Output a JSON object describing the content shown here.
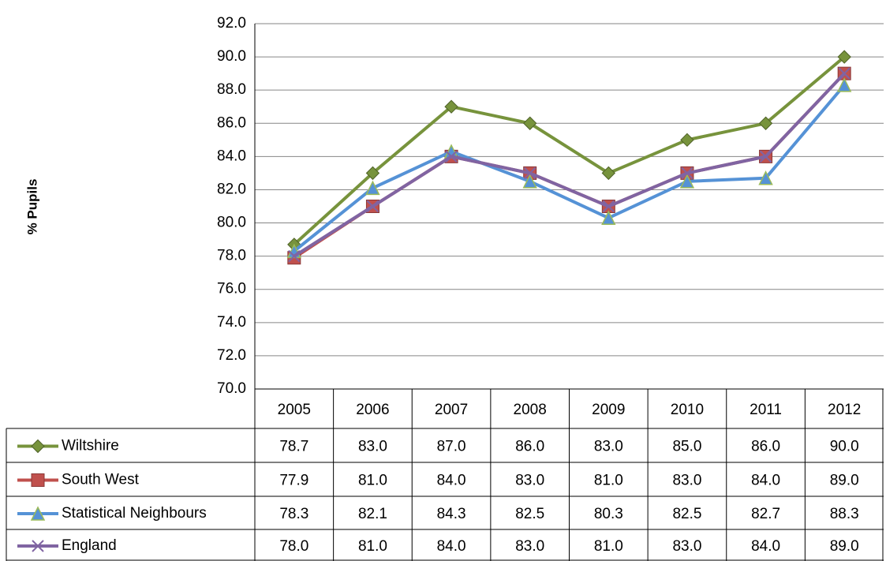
{
  "chart_data": {
    "type": "line",
    "y_label": "% Pupils",
    "categories": [
      "2005",
      "2006",
      "2007",
      "2008",
      "2009",
      "2010",
      "2011",
      "2012"
    ],
    "series": [
      {
        "name": "Wiltshire",
        "color": "#77933c",
        "marker": "diamond",
        "values": [
          78.7,
          83,
          87,
          86,
          83,
          85,
          86,
          90
        ],
        "value_labels": [
          "78.7",
          "83.0",
          "87.0",
          "86.0",
          "83.0",
          "85.0",
          "86.0",
          "90.0"
        ]
      },
      {
        "name": "South West",
        "color": "#c0504d",
        "marker": "square",
        "values": [
          77.9,
          81,
          84,
          83,
          81,
          83,
          84,
          89
        ],
        "value_labels": [
          "77.9",
          "81.0",
          "84.0",
          "83.0",
          "81.0",
          "83.0",
          "84.0",
          "89.0"
        ]
      },
      {
        "name": "Statistical Neighbours",
        "color": "#5592d6",
        "marker": "triangle",
        "values": [
          78.3,
          82.1,
          84.3,
          82.5,
          80.3,
          82.5,
          82.7,
          88.3
        ],
        "value_labels": [
          "78.3",
          "82.1",
          "84.3",
          "82.5",
          "80.3",
          "82.5",
          "82.7",
          "88.3"
        ]
      },
      {
        "name": "England",
        "color": "#8064a2",
        "marker": "x",
        "values": [
          78,
          81,
          84,
          83,
          81,
          83,
          84,
          89
        ],
        "value_labels": [
          "78.0",
          "81.0",
          "84.0",
          "83.0",
          "81.0",
          "83.0",
          "84.0",
          "89.0"
        ]
      }
    ],
    "ylim": [
      70,
      92
    ],
    "yticks": [
      {
        "value": 70,
        "label": "70.0"
      },
      {
        "value": 72,
        "label": "72.0"
      },
      {
        "value": 74,
        "label": "74.0"
      },
      {
        "value": 76,
        "label": "76.0"
      },
      {
        "value": 78,
        "label": "78.0"
      },
      {
        "value": 80,
        "label": "80.0"
      },
      {
        "value": 82,
        "label": "82.0"
      },
      {
        "value": 84,
        "label": "84.0"
      },
      {
        "value": 86,
        "label": "86.0"
      },
      {
        "value": 88,
        "label": "88.0"
      },
      {
        "value": 90,
        "label": "90.0"
      },
      {
        "value": 92,
        "label": "92.0"
      }
    ],
    "grid": true
  }
}
